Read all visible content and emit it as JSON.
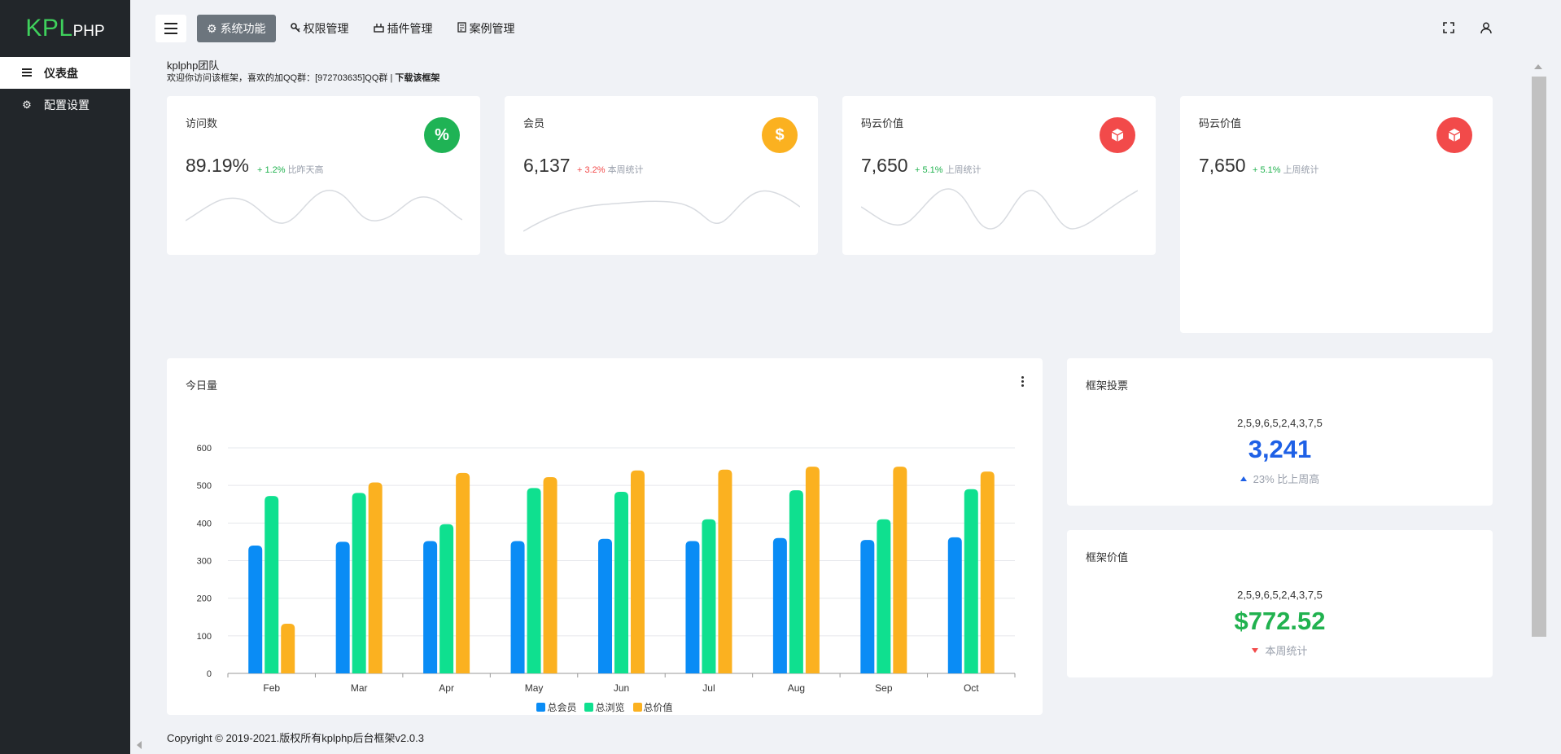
{
  "sidebar": {
    "logo_main": "KPL",
    "logo_sub": "PHP",
    "items": [
      {
        "label": "仪表盘",
        "icon": "menu-icon"
      },
      {
        "label": "配置设置",
        "icon": "gear-icon"
      }
    ]
  },
  "topbar": {
    "nav": [
      {
        "label": "系统功能",
        "icon": "gear-icon"
      },
      {
        "label": "权限管理",
        "icon": "key-icon"
      },
      {
        "label": "插件管理",
        "icon": "plug-icon"
      },
      {
        "label": "案例管理",
        "icon": "file-icon"
      }
    ],
    "right_icons": [
      "fullscreen-icon",
      "user-icon"
    ]
  },
  "page": {
    "title": "kplphp团队",
    "subtitle_prefix": "欢迎你访问该框架，喜欢的加QQ群：[972703635]QQ群 |",
    "subtitle_link": "下载该框架"
  },
  "stats": [
    {
      "title": "访问数",
      "value": "89.19%",
      "change": "+ 1.2%",
      "change_desc": "比昨天高",
      "trend": "up",
      "icon": "percent-icon",
      "icon_glyph": "%",
      "color": "#1fb355"
    },
    {
      "title": "会员",
      "value": "6,137",
      "change": "+ 3.2%",
      "change_desc": "本周统计",
      "trend": "down",
      "icon": "dollar-icon",
      "icon_glyph": "$",
      "color": "#fbb120"
    },
    {
      "title": "码云价值",
      "value": "7,650",
      "change": "+ 5.1%",
      "change_desc": "上周统计",
      "trend": "up",
      "icon": "cube-icon",
      "icon_glyph": "",
      "color": "#f24a4a"
    },
    {
      "title": "码云价值",
      "value": "7,650",
      "change": "+ 5.1%",
      "change_desc": "上周统计",
      "trend": "up",
      "icon": "cube-icon",
      "icon_glyph": "",
      "color": "#f24a4a"
    }
  ],
  "today": {
    "title": "今日量"
  },
  "chart_data": {
    "type": "bar",
    "title": "今日量",
    "categories": [
      "Feb",
      "Mar",
      "Apr",
      "May",
      "Jun",
      "Jul",
      "Aug",
      "Sep",
      "Oct"
    ],
    "series": [
      {
        "name": "总会员",
        "color": "#0a8cf5",
        "values": [
          340,
          350,
          352,
          352,
          358,
          352,
          360,
          355,
          362
        ]
      },
      {
        "name": "总浏览",
        "color": "#0fe08f",
        "values": [
          472,
          480,
          397,
          493,
          483,
          410,
          487,
          410,
          490
        ]
      },
      {
        "name": "总价值",
        "color": "#fbb120",
        "values": [
          132,
          508,
          533,
          522,
          540,
          542,
          550,
          550,
          537
        ]
      }
    ],
    "ylim": [
      0,
      600
    ],
    "yticks": [
      0,
      100,
      200,
      300,
      400,
      500,
      600
    ],
    "grid": true,
    "legend": "bottom-center"
  },
  "vote": {
    "title": "框架投票",
    "sequence": "2,5,9,6,5,2,4,3,7,5",
    "value": "3,241",
    "value_color": "#1e60e6",
    "footer": "23% 比上周高"
  },
  "worth": {
    "title": "框架价值",
    "sequence": "2,5,9,6,5,2,4,3,7,5",
    "value": "$772.52",
    "value_color": "#21b24f",
    "footer": "本周统计"
  },
  "footer": {
    "copyright": "Copyright © 2019-2021.版权所有kplphp后台框架v2.0.3"
  }
}
